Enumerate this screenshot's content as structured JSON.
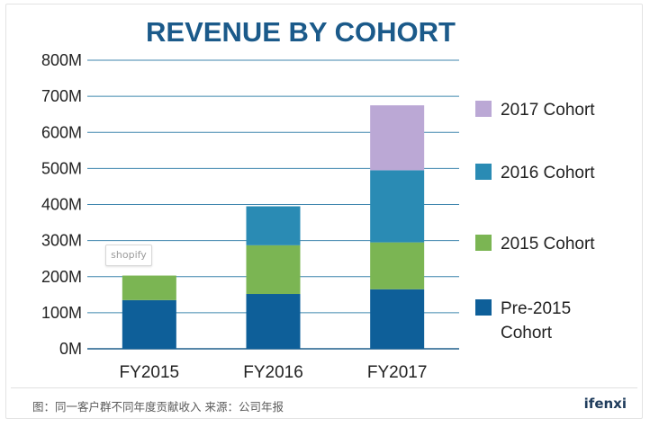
{
  "chart_data": {
    "type": "bar",
    "stacked": true,
    "title": "REVENUE BY COHORT",
    "categories": [
      "FY2015",
      "FY2016",
      "FY2017"
    ],
    "ylim": [
      0,
      800
    ],
    "ytick_values": [
      0,
      100,
      200,
      300,
      400,
      500,
      600,
      700,
      800
    ],
    "ytick_labels": [
      "0M",
      "100M",
      "200M",
      "300M",
      "400M",
      "500M",
      "600M",
      "700M",
      "800M"
    ],
    "series": [
      {
        "name": "Pre-2015 Cohort",
        "color": "#0e5f99",
        "values": [
          135,
          152,
          165
        ]
      },
      {
        "name": "2015 Cohort",
        "color": "#7bb553",
        "values": [
          68,
          135,
          130
        ]
      },
      {
        "name": "2016 Cohort",
        "color": "#2a8bb4",
        "values": [
          0,
          108,
          200
        ]
      },
      {
        "name": "2017 Cohort",
        "color": "#bba8d5",
        "values": [
          0,
          0,
          180
        ]
      }
    ],
    "legend_order": [
      "2017 Cohort",
      "2016 Cohort",
      "2015 Cohort",
      "Pre-2015 Cohort"
    ],
    "legend_lines": {
      "2017 Cohort": [
        "2017 Cohort"
      ],
      "2016 Cohort": [
        "2016 Cohort"
      ],
      "2015 Cohort": [
        "2015 Cohort"
      ],
      "Pre-2015 Cohort": [
        "Pre-2015",
        "Cohort"
      ]
    },
    "grid": true,
    "legend_position": "right"
  },
  "watermark": "shopify",
  "footer": {
    "note": "图：同一客户群不同年度贡献收入    来源：公司年报",
    "logo": "ifenxi"
  }
}
